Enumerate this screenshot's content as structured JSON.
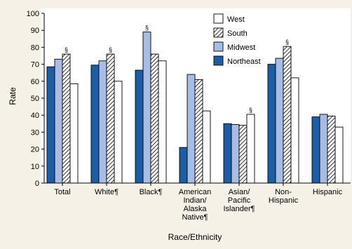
{
  "chart_data": {
    "type": "bar",
    "ylabel": "Rate",
    "xlabel": "Race/Ethnicity",
    "ylim": [
      0,
      100
    ],
    "yticks": [
      0,
      10,
      20,
      30,
      40,
      50,
      60,
      70,
      80,
      90,
      100
    ],
    "categories": [
      [
        "Total"
      ],
      [
        "White¶"
      ],
      [
        "Black¶"
      ],
      [
        "American",
        "Indian/",
        "Alaska",
        "Native¶"
      ],
      [
        "Asian/",
        "Pacific",
        "Islander¶"
      ],
      [
        "Non-",
        "Hispanic"
      ],
      [
        "Hispanic"
      ]
    ],
    "series": [
      {
        "name": "Northeast",
        "color": "#1a5ea8",
        "pattern": "solid",
        "values": [
          68.5,
          69.5,
          66.5,
          21,
          35,
          70,
          39
        ]
      },
      {
        "name": "Midwest",
        "color": "#a8bde6",
        "pattern": "solid",
        "values": [
          73,
          72,
          89,
          64,
          34.5,
          73.5,
          40.5
        ]
      },
      {
        "name": "South",
        "color": "#ffffff",
        "pattern": "hatch",
        "values": [
          76,
          76,
          76,
          61,
          34,
          80.5,
          39.5
        ]
      },
      {
        "name": "West",
        "color": "#ffffff",
        "pattern": "none",
        "values": [
          58.5,
          60,
          72,
          42.5,
          40.5,
          62,
          33
        ]
      }
    ],
    "annotations": [
      {
        "category": 0,
        "series": 2,
        "text": "§"
      },
      {
        "category": 1,
        "series": 2,
        "text": "§"
      },
      {
        "category": 2,
        "series": 1,
        "text": "§"
      },
      {
        "category": 4,
        "series": 3,
        "text": "§"
      },
      {
        "category": 5,
        "series": 2,
        "text": "§"
      }
    ],
    "legend": {
      "placement": "top-right",
      "order": [
        "West",
        "South",
        "Midwest",
        "Northeast"
      ]
    }
  }
}
